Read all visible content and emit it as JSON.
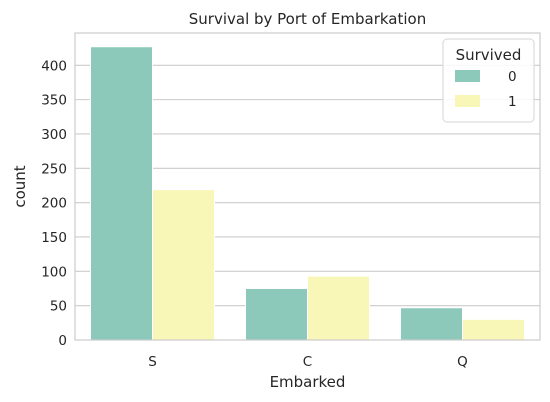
{
  "chart_data": {
    "type": "bar",
    "title": "Survival by Port of Embarkation",
    "xlabel": "Embarked",
    "ylabel": "count",
    "categories": [
      "S",
      "C",
      "Q"
    ],
    "series": [
      {
        "name": "0",
        "values": [
          427,
          75,
          47
        ],
        "color": "#8dc9bb"
      },
      {
        "name": "1",
        "values": [
          219,
          93,
          30
        ],
        "color": "#f9f7b7"
      }
    ],
    "ylim": [
      0,
      447
    ],
    "yticks": [
      0,
      50,
      100,
      150,
      200,
      250,
      300,
      350,
      400
    ],
    "grid": true,
    "legend": {
      "title": "Survived",
      "placement": "top-right"
    }
  }
}
